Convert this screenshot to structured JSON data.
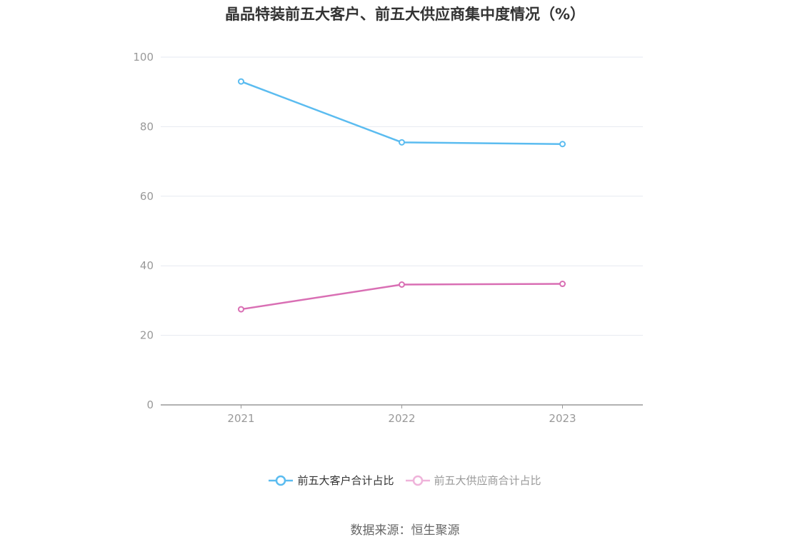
{
  "title": "晶品特装前五大客户、前五大供应商集中度情况（%）",
  "source": "数据来源：恒生聚源",
  "colors": {
    "series1": "#5bbcf0",
    "series2": "#d96fb4",
    "series2_legend": "#efb3da",
    "grid": "#e6e9f0",
    "axis": "#999999",
    "tick_text": "#999999"
  },
  "chart_data": {
    "type": "line",
    "x": [
      "2021",
      "2022",
      "2023"
    ],
    "ylim": [
      0,
      100
    ],
    "yticks": [
      0,
      20,
      40,
      60,
      80,
      100
    ],
    "grid": true,
    "legend_position": "bottom",
    "series": [
      {
        "name": "前五大客户合计占比",
        "values": [
          93.0,
          75.5,
          75.0
        ],
        "color": "#5bbcf0"
      },
      {
        "name": "前五大供应商合计占比",
        "values": [
          27.5,
          34.6,
          34.8
        ],
        "color": "#d96fb4"
      }
    ]
  }
}
